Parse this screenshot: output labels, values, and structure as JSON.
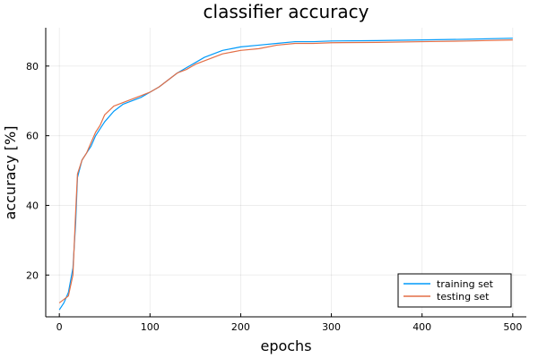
{
  "chart_data": {
    "type": "line",
    "title": "classifier accuracy",
    "xlabel": "epochs",
    "ylabel": "accuracy [%]",
    "xlim": [
      -15,
      515
    ],
    "ylim": [
      8,
      91
    ],
    "xticks": [
      0,
      100,
      200,
      300,
      400,
      500
    ],
    "yticks": [
      20,
      40,
      60,
      80
    ],
    "grid": true,
    "legend_position": "bottom-right",
    "series": [
      {
        "name": "training set",
        "color": "#009AFA",
        "x": [
          0,
          5,
          10,
          15,
          18,
          20,
          25,
          30,
          35,
          40,
          45,
          50,
          60,
          70,
          80,
          90,
          100,
          110,
          120,
          130,
          140,
          150,
          160,
          170,
          180,
          190,
          200,
          220,
          240,
          260,
          280,
          300,
          350,
          400,
          450,
          500
        ],
        "y": [
          10,
          12,
          15,
          22,
          35,
          48,
          53,
          55,
          57,
          60,
          62,
          64,
          67,
          69,
          70,
          71,
          72.5,
          74,
          76,
          78,
          79.5,
          81,
          82.5,
          83.5,
          84.5,
          85,
          85.5,
          86,
          86.5,
          87,
          87,
          87.2,
          87.3,
          87.5,
          87.7,
          88
        ]
      },
      {
        "name": "testing set",
        "color": "#E36F47",
        "x": [
          0,
          5,
          10,
          15,
          18,
          20,
          25,
          30,
          35,
          40,
          45,
          50,
          60,
          70,
          80,
          90,
          100,
          110,
          120,
          130,
          140,
          150,
          160,
          170,
          180,
          190,
          200,
          220,
          240,
          260,
          280,
          300,
          350,
          400,
          450,
          500
        ],
        "y": [
          12,
          13,
          14,
          20,
          38,
          49,
          53,
          55,
          58,
          61,
          63,
          66,
          68.5,
          69.5,
          70.5,
          71.5,
          72.5,
          74,
          76,
          78,
          79,
          80.5,
          81.5,
          82.5,
          83.5,
          84,
          84.5,
          85,
          86,
          86.5,
          86.5,
          86.7,
          86.8,
          87,
          87.2,
          87.5
        ]
      }
    ]
  }
}
